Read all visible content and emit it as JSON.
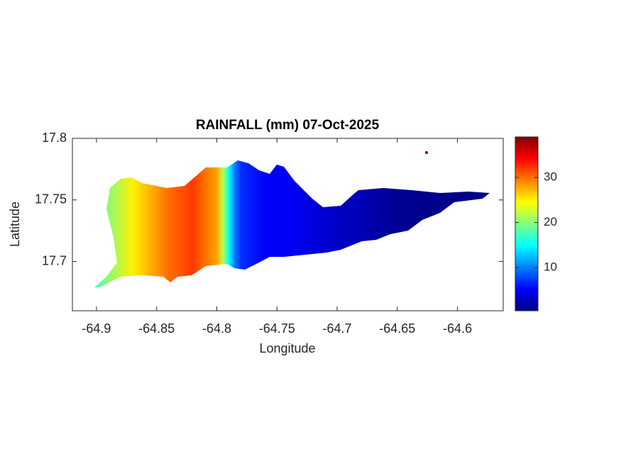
{
  "chart_data": {
    "type": "map",
    "title": "RAINFALL (mm) 07-Oct-2025",
    "x_label": "Longitude",
    "y_label": "Latitude",
    "xlim": [
      -64.92,
      -64.562
    ],
    "ylim": [
      17.66,
      17.8
    ],
    "xticks": [
      -64.9,
      -64.85,
      -64.8,
      -64.75,
      -64.7,
      -64.65,
      -64.6
    ],
    "yticks": [
      17.7,
      17.75,
      17.8
    ],
    "colormap": "jet",
    "clim": [
      0.4,
      39
    ],
    "cticks": [
      10,
      20,
      30
    ],
    "x": [
      -64.9,
      -64.87,
      -64.84,
      -64.82,
      -64.8,
      -64.795,
      -64.79,
      -64.785,
      -64.78,
      -64.76,
      -64.74,
      -64.72,
      -64.7,
      -64.68,
      -64.66,
      -64.64,
      -64.62,
      -64.6,
      -64.57
    ],
    "values": [
      18,
      25,
      30,
      32,
      28,
      22,
      15,
      10,
      7,
      5,
      5,
      4,
      3,
      2.5,
      1.5,
      1,
      0.8,
      0.8,
      0.8
    ]
  }
}
